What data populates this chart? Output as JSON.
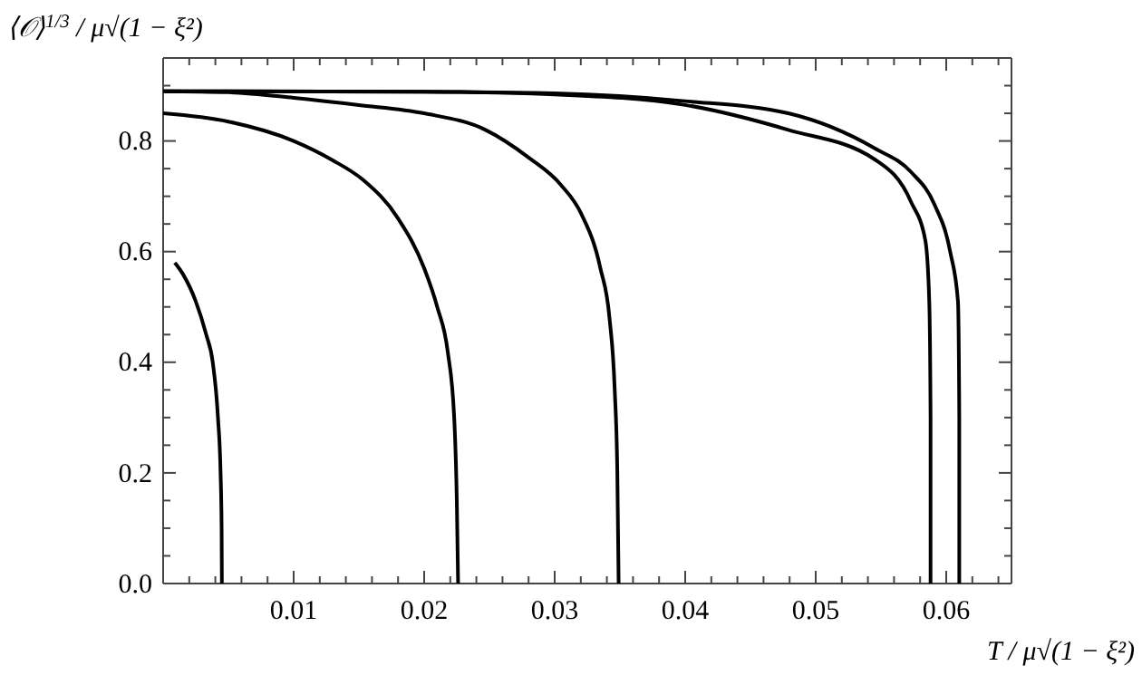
{
  "chart_data": {
    "type": "line",
    "xlabel": "T / μ√(1 − ξ²)",
    "ylabel": "⟨𝒪⟩$^{1/3}$ / μ√(1 − ξ²)",
    "xlim": [
      0,
      0.065
    ],
    "ylim": [
      0,
      0.95
    ],
    "xticks": [
      {
        "value": 0.002,
        "label": null
      },
      {
        "value": 0.004,
        "label": null
      },
      {
        "value": 0.006,
        "label": null
      },
      {
        "value": 0.008,
        "label": null
      },
      0.01,
      {
        "value": 0.012,
        "label": null
      },
      {
        "value": 0.014,
        "label": null
      },
      {
        "value": 0.016,
        "label": null
      },
      {
        "value": 0.018,
        "label": null
      },
      0.02,
      {
        "value": 0.022,
        "label": null
      },
      {
        "value": 0.024,
        "label": null
      },
      {
        "value": 0.026,
        "label": null
      },
      {
        "value": 0.028,
        "label": null
      },
      0.03,
      {
        "value": 0.032,
        "label": null
      },
      {
        "value": 0.034,
        "label": null
      },
      {
        "value": 0.036,
        "label": null
      },
      {
        "value": 0.038,
        "label": null
      },
      0.04,
      {
        "value": 0.042,
        "label": null
      },
      {
        "value": 0.044,
        "label": null
      },
      {
        "value": 0.046,
        "label": null
      },
      {
        "value": 0.048,
        "label": null
      },
      0.05,
      {
        "value": 0.052,
        "label": null
      },
      {
        "value": 0.054,
        "label": null
      },
      {
        "value": 0.056,
        "label": null
      },
      {
        "value": 0.058,
        "label": null
      },
      0.06,
      {
        "value": 0.062,
        "label": null
      },
      {
        "value": 0.064,
        "label": null
      }
    ],
    "yticks": [
      {
        "value": 0,
        "label": "0.0"
      },
      {
        "value": 0.05,
        "label": null
      },
      {
        "value": 0.1,
        "label": null
      },
      {
        "value": 0.15,
        "label": null
      },
      0.2,
      {
        "value": 0.25,
        "label": null
      },
      {
        "value": 0.3,
        "label": null
      },
      {
        "value": 0.35,
        "label": null
      },
      0.4,
      {
        "value": 0.45,
        "label": null
      },
      {
        "value": 0.5,
        "label": null
      },
      {
        "value": 0.55,
        "label": null
      },
      0.6,
      {
        "value": 0.65,
        "label": null
      },
      {
        "value": 0.7,
        "label": null
      },
      {
        "value": 0.75,
        "label": null
      },
      0.8,
      {
        "value": 0.85,
        "label": null
      },
      {
        "value": 0.9,
        "label": null
      }
    ],
    "marker": "none",
    "line_style": "solid",
    "series": [
      {
        "color": "#000000",
        "x": [
          0.0009,
          0.0015,
          0.0025,
          0.0033,
          0.0038,
          0.0042,
          0.0044,
          0.00448,
          0.0045
        ],
        "values": [
          0.58,
          0.56,
          0.51,
          0.45,
          0.4,
          0.3,
          0.2,
          0.1,
          0
        ]
      },
      {
        "color": "#000000",
        "x": [
          0,
          0.005,
          0.01,
          0.013,
          0.0153,
          0.018,
          0.02,
          0.021,
          0.0218,
          0.0223,
          0.0225,
          0.0226
        ],
        "values": [
          0.85,
          0.835,
          0.8,
          0.765,
          0.73,
          0.66,
          0.57,
          0.5,
          0.42,
          0.3,
          0.15,
          0
        ]
      },
      {
        "color": "#000000",
        "x": [
          0,
          0.005,
          0.01,
          0.015,
          0.02,
          0.0247,
          0.028,
          0.0305,
          0.032,
          0.0335,
          0.0342,
          0.0346,
          0.0348,
          0.0349
        ],
        "values": [
          0.89,
          0.888,
          0.878,
          0.865,
          0.85,
          0.82,
          0.77,
          0.72,
          0.67,
          0.57,
          0.48,
          0.35,
          0.2,
          0
        ]
      },
      {
        "color": "#000000",
        "x": [
          0,
          0.02,
          0.03,
          0.04,
          0.0479,
          0.0545,
          0.0573,
          0.0584,
          0.0587,
          0.0588,
          0.0588
        ],
        "values": [
          0.89,
          0.889,
          0.884,
          0.865,
          0.82,
          0.767,
          0.69,
          0.62,
          0.51,
          0.3,
          0
        ]
      },
      {
        "color": "#000000",
        "x": [
          0,
          0.02,
          0.03,
          0.04,
          0.0479,
          0.0545,
          0.0573,
          0.0591,
          0.0603,
          0.0609,
          0.061,
          0.061
        ],
        "values": [
          0.89,
          0.889,
          0.886,
          0.872,
          0.85,
          0.787,
          0.744,
          0.685,
          0.6,
          0.51,
          0.3,
          0
        ]
      }
    ]
  }
}
